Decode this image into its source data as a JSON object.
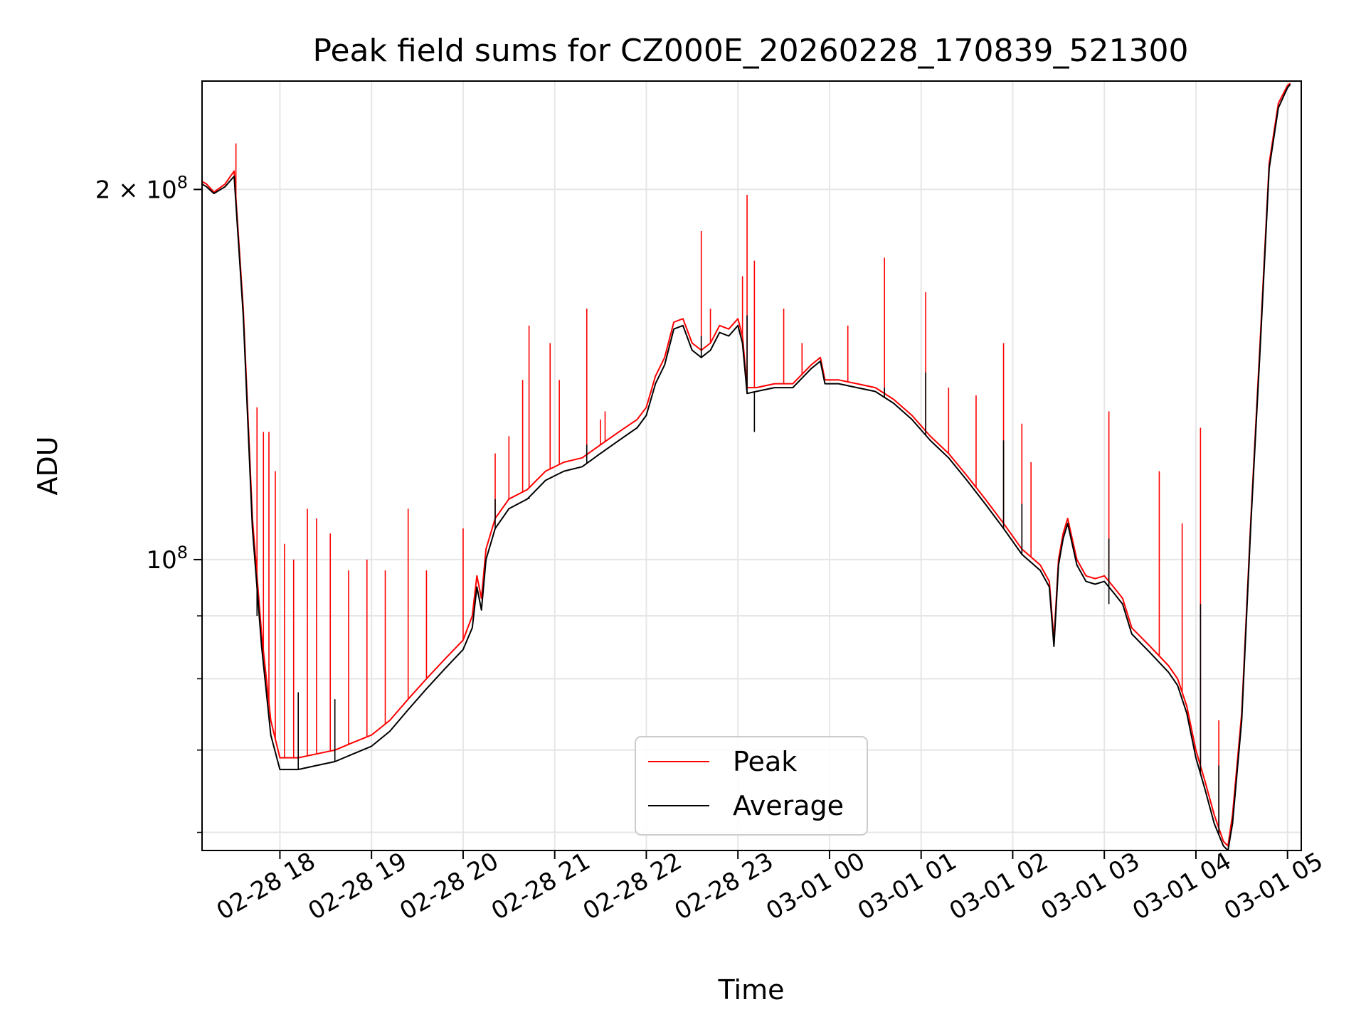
{
  "chart_data": {
    "type": "line",
    "title": "Peak field sums for CZ000E_20260228_170839_521300",
    "xlabel": "Time",
    "ylabel": "ADU",
    "yscale": "log",
    "ylim": [
      58000000,
      245000000
    ],
    "xlim": [
      17.15,
      29.15
    ],
    "x_tick_values": [
      18,
      19,
      20,
      21,
      22,
      23,
      24,
      25,
      26,
      27,
      28,
      29
    ],
    "x_tick_labels": [
      "02-28 18",
      "02-28 19",
      "02-28 20",
      "02-28 21",
      "02-28 22",
      "02-28 23",
      "03-01 00",
      "03-01 01",
      "03-01 02",
      "03-01 03",
      "03-01 04",
      "03-01 05"
    ],
    "y_tick_labels": [
      {
        "value": 200000000,
        "mantissa": "2",
        "times": "×",
        "base": "10",
        "exp": "8"
      },
      {
        "value": 100000000,
        "mantissa": "",
        "times": "",
        "base": "10",
        "exp": "8"
      }
    ],
    "y_minor_ticks": [
      60000000,
      70000000,
      80000000,
      90000000
    ],
    "grid": true,
    "legend": {
      "position": "lower-center",
      "entries": [
        "Peak",
        "Average"
      ]
    },
    "series": [
      {
        "name": "Peak",
        "color": "#ff0000",
        "x": [
          17.15,
          17.2,
          17.28,
          17.4,
          17.5,
          17.6,
          17.7,
          17.8,
          17.9,
          18.0,
          18.2,
          18.4,
          18.6,
          18.8,
          19.0,
          19.2,
          19.4,
          19.6,
          19.8,
          20.0,
          20.1,
          20.15,
          20.2,
          20.25,
          20.35,
          20.5,
          20.7,
          20.9,
          21.1,
          21.3,
          21.5,
          21.7,
          21.9,
          22.0,
          22.1,
          22.2,
          22.3,
          22.4,
          22.5,
          22.6,
          22.7,
          22.8,
          22.9,
          23.0,
          23.05,
          23.1,
          23.2,
          23.4,
          23.6,
          23.8,
          23.9,
          23.95,
          24.1,
          24.3,
          24.5,
          24.7,
          24.9,
          25.1,
          25.3,
          25.5,
          25.7,
          25.9,
          26.1,
          26.3,
          26.4,
          26.45,
          26.5,
          26.55,
          26.6,
          26.7,
          26.8,
          26.9,
          27.0,
          27.1,
          27.2,
          27.3,
          27.5,
          27.7,
          27.8,
          27.9,
          28.0,
          28.1,
          28.2,
          28.3,
          28.35,
          28.4,
          28.5,
          28.6,
          28.7,
          28.8,
          28.9,
          29.0,
          29.03
        ],
        "y": [
          203000000,
          202000000,
          199000000,
          202000000,
          207000000,
          160000000,
          108000000,
          87000000,
          74000000,
          69000000,
          69000000,
          69500000,
          70000000,
          71000000,
          72000000,
          74000000,
          77000000,
          80000000,
          83000000,
          86000000,
          90000000,
          97000000,
          93000000,
          102000000,
          108000000,
          112000000,
          114000000,
          118000000,
          120000000,
          121000000,
          124000000,
          127000000,
          130000000,
          133000000,
          141000000,
          146000000,
          156000000,
          157000000,
          150000000,
          148000000,
          150000000,
          155000000,
          154000000,
          157000000,
          152000000,
          138000000,
          138000000,
          139000000,
          139000000,
          144000000,
          146000000,
          140000000,
          140000000,
          139000000,
          138000000,
          135000000,
          131000000,
          126000000,
          122000000,
          117000000,
          112000000,
          107000000,
          102000000,
          99000000,
          96000000,
          86000000,
          100000000,
          105000000,
          108000000,
          100000000,
          97000000,
          96500000,
          97000000,
          95000000,
          93000000,
          88000000,
          85000000,
          82000000,
          80000000,
          76000000,
          70000000,
          66000000,
          62000000,
          59000000,
          58500000,
          62000000,
          75000000,
          108000000,
          150000000,
          210000000,
          235000000,
          243000000,
          244000000
        ],
        "spikes": [
          [
            17.52,
            218000000
          ],
          [
            17.75,
            133000000
          ],
          [
            17.82,
            127000000
          ],
          [
            17.88,
            127000000
          ],
          [
            17.95,
            118000000
          ],
          [
            18.05,
            103000000
          ],
          [
            18.15,
            100000000
          ],
          [
            18.3,
            110000000
          ],
          [
            18.4,
            108000000
          ],
          [
            18.55,
            105000000
          ],
          [
            18.75,
            98000000
          ],
          [
            18.95,
            100000000
          ],
          [
            19.15,
            98000000
          ],
          [
            19.4,
            110000000
          ],
          [
            19.6,
            98000000
          ],
          [
            20.0,
            106000000
          ],
          [
            20.35,
            122000000
          ],
          [
            20.5,
            126000000
          ],
          [
            20.65,
            140000000
          ],
          [
            20.72,
            155000000
          ],
          [
            20.95,
            150000000
          ],
          [
            21.05,
            140000000
          ],
          [
            21.35,
            160000000
          ],
          [
            21.5,
            130000000
          ],
          [
            21.55,
            132000000
          ],
          [
            22.6,
            185000000
          ],
          [
            22.7,
            160000000
          ],
          [
            23.05,
            170000000
          ],
          [
            23.1,
            198000000
          ],
          [
            23.18,
            175000000
          ],
          [
            23.5,
            160000000
          ],
          [
            23.7,
            150000000
          ],
          [
            24.2,
            155000000
          ],
          [
            24.6,
            176000000
          ],
          [
            25.05,
            165000000
          ],
          [
            25.3,
            138000000
          ],
          [
            25.6,
            136000000
          ],
          [
            25.9,
            150000000
          ],
          [
            26.1,
            129000000
          ],
          [
            26.2,
            120000000
          ],
          [
            27.05,
            132000000
          ],
          [
            27.6,
            118000000
          ],
          [
            27.85,
            107000000
          ],
          [
            28.05,
            128000000
          ],
          [
            28.25,
            74000000
          ]
        ]
      },
      {
        "name": "Average",
        "color": "#000000",
        "x": [
          17.15,
          17.2,
          17.28,
          17.4,
          17.5,
          17.6,
          17.7,
          17.8,
          17.9,
          18.0,
          18.2,
          18.4,
          18.6,
          18.8,
          19.0,
          19.2,
          19.4,
          19.6,
          19.8,
          20.0,
          20.1,
          20.15,
          20.2,
          20.25,
          20.35,
          20.5,
          20.7,
          20.9,
          21.1,
          21.3,
          21.5,
          21.7,
          21.9,
          22.0,
          22.1,
          22.2,
          22.3,
          22.4,
          22.5,
          22.6,
          22.7,
          22.8,
          22.9,
          23.0,
          23.05,
          23.1,
          23.2,
          23.4,
          23.6,
          23.8,
          23.9,
          23.95,
          24.1,
          24.3,
          24.5,
          24.7,
          24.9,
          25.1,
          25.3,
          25.5,
          25.7,
          25.9,
          26.1,
          26.3,
          26.4,
          26.45,
          26.5,
          26.55,
          26.6,
          26.7,
          26.8,
          26.9,
          27.0,
          27.1,
          27.2,
          27.3,
          27.5,
          27.7,
          27.8,
          27.9,
          28.0,
          28.1,
          28.2,
          28.3,
          28.35,
          28.4,
          28.5,
          28.6,
          28.7,
          28.8,
          28.9,
          29.0,
          29.03
        ],
        "y": [
          202000000,
          201000000,
          198500000,
          201000000,
          205000000,
          158000000,
          106000000,
          85000000,
          72000000,
          67500000,
          67500000,
          68000000,
          68500000,
          69500000,
          70500000,
          72500000,
          75500000,
          78500000,
          81500000,
          84500000,
          88000000,
          95000000,
          91000000,
          100000000,
          106000000,
          110000000,
          112000000,
          116000000,
          118000000,
          119000000,
          122000000,
          125000000,
          128000000,
          131000000,
          139000000,
          144000000,
          154000000,
          155000000,
          148000000,
          146000000,
          148000000,
          153000000,
          152000000,
          155000000,
          150000000,
          136500000,
          137000000,
          138000000,
          138000000,
          143000000,
          145000000,
          139000000,
          139000000,
          138000000,
          137000000,
          134000000,
          130000000,
          125000000,
          121000000,
          116000000,
          111000000,
          106000000,
          101000000,
          98000000,
          95000000,
          85000000,
          99000000,
          104000000,
          107000000,
          99000000,
          96000000,
          95500000,
          96000000,
          94000000,
          92000000,
          87000000,
          84000000,
          81000000,
          79000000,
          75000000,
          69000000,
          65000000,
          61000000,
          58500000,
          58000000,
          61000000,
          74000000,
          107000000,
          148000000,
          208000000,
          233000000,
          242000000,
          243500000
        ],
        "spikes": [
          [
            17.75,
            90000000
          ],
          [
            18.2,
            78000000
          ],
          [
            18.6,
            77000000
          ],
          [
            20.35,
            112000000
          ],
          [
            20.72,
            112000000
          ],
          [
            21.35,
            124000000
          ],
          [
            22.6,
            152000000
          ],
          [
            23.1,
            158000000
          ],
          [
            23.18,
            127000000
          ],
          [
            24.6,
            138000000
          ],
          [
            25.05,
            142000000
          ],
          [
            25.9,
            125000000
          ],
          [
            26.1,
            111000000
          ],
          [
            27.05,
            104000000
          ],
          [
            27.05,
            92000000
          ],
          [
            28.05,
            92000000
          ],
          [
            28.25,
            68000000
          ]
        ]
      }
    ]
  }
}
